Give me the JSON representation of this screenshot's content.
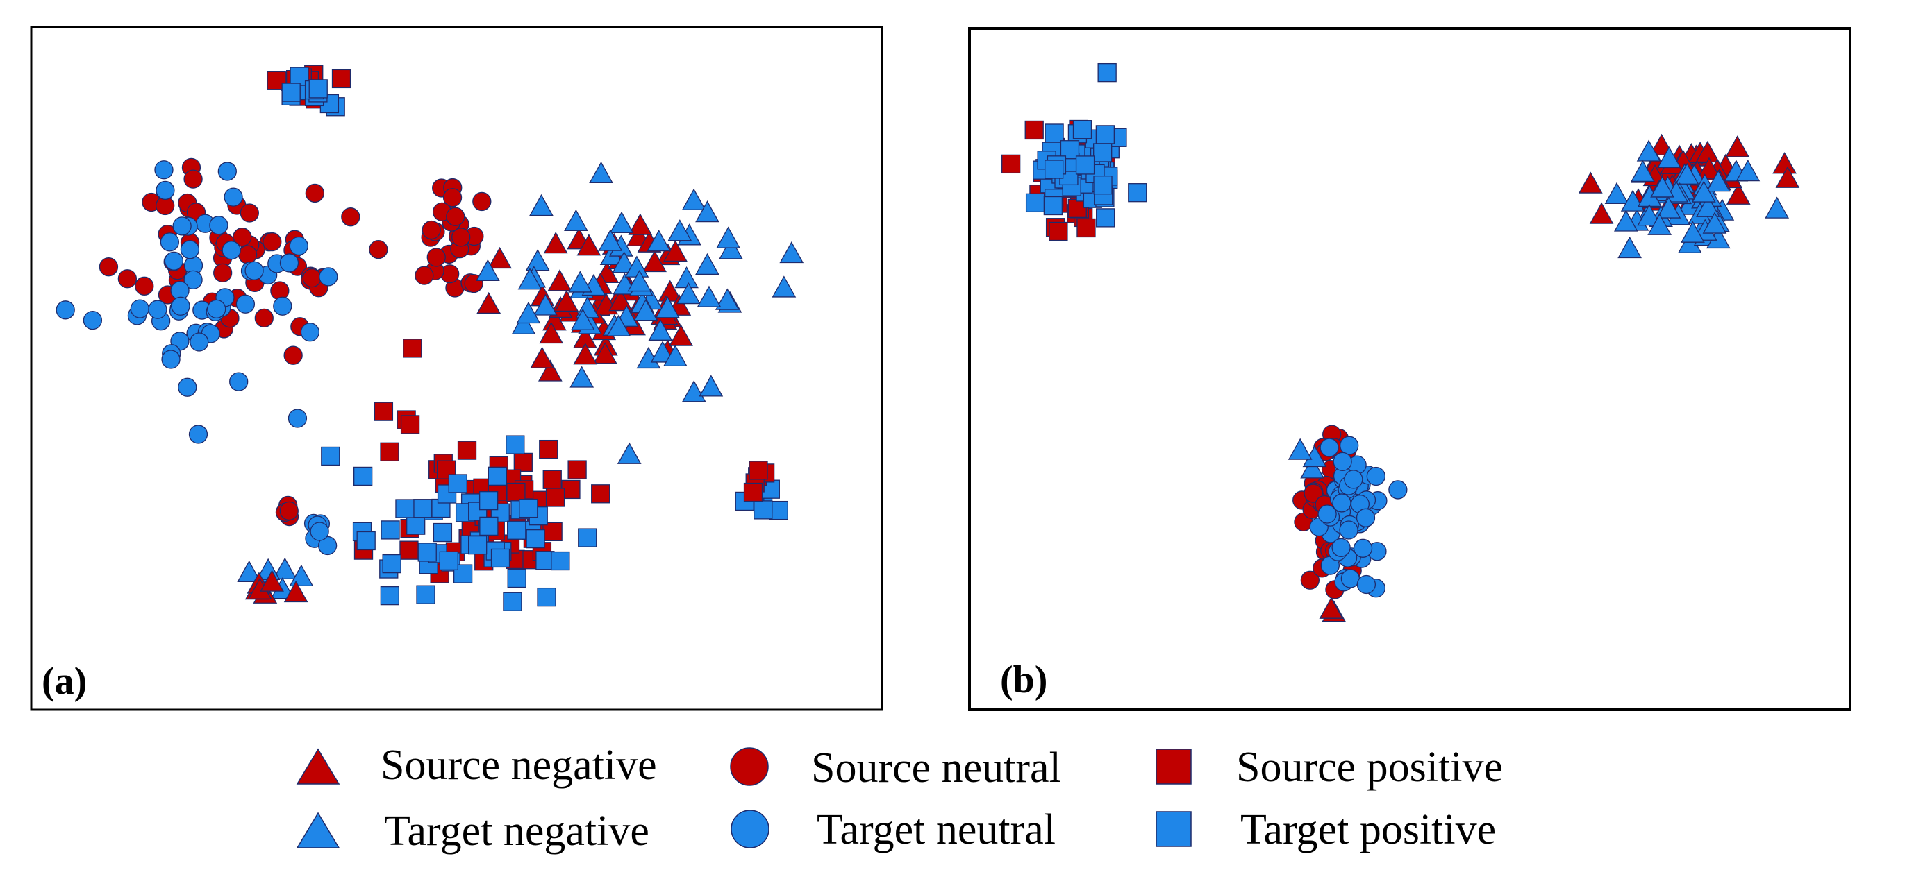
{
  "chart_data": {
    "type": "scatter",
    "colors": {
      "source": "#C00000",
      "target": "#1F86E8",
      "edge": "#1F2B6B"
    },
    "legend": [
      {
        "key": "source_negative",
        "label": "Source negative",
        "shape": "triangle",
        "domain": "source"
      },
      {
        "key": "source_neutral",
        "label": "Source neutral",
        "shape": "circle",
        "domain": "source"
      },
      {
        "key": "source_positive",
        "label": "Source positive",
        "shape": "square",
        "domain": "source"
      },
      {
        "key": "target_negative",
        "label": "Target negative",
        "shape": "triangle",
        "domain": "target"
      },
      {
        "key": "target_neutral",
        "label": "Target neutral",
        "shape": "circle",
        "domain": "target"
      },
      {
        "key": "target_positive",
        "label": "Target positive",
        "shape": "square",
        "domain": "target"
      }
    ],
    "panels": [
      {
        "label": "(a)",
        "xlim": [
          0,
          100
        ],
        "ylim": [
          0,
          100
        ],
        "clusters": [
          {
            "series": "source_neutral",
            "cx": 24,
            "cy": 67,
            "sx": 13,
            "sy": 13,
            "n": 50
          },
          {
            "series": "target_neutral",
            "cx": 21,
            "cy": 62,
            "sx": 12,
            "sy": 14,
            "n": 50
          },
          {
            "series": "source_neutral",
            "cx": 48,
            "cy": 70,
            "sx": 6,
            "sy": 7,
            "n": 25
          },
          {
            "series": "target_neutral",
            "cx": 33,
            "cy": 25,
            "sx": 2,
            "sy": 3,
            "n": 6
          },
          {
            "series": "source_neutral",
            "cx": 30,
            "cy": 28,
            "sx": 1.5,
            "sy": 2,
            "n": 4
          },
          {
            "series": "source_negative",
            "cx": 70,
            "cy": 60,
            "sx": 12,
            "sy": 10,
            "n": 50
          },
          {
            "series": "target_negative",
            "cx": 72,
            "cy": 62,
            "sx": 14,
            "sy": 14,
            "n": 55
          },
          {
            "series": "target_negative",
            "cx": 29,
            "cy": 18,
            "sx": 3,
            "sy": 2,
            "n": 6
          },
          {
            "series": "source_negative",
            "cx": 28,
            "cy": 17,
            "sx": 3,
            "sy": 2,
            "n": 6
          },
          {
            "series": "source_positive",
            "cx": 54,
            "cy": 30,
            "sx": 11,
            "sy": 12,
            "n": 55
          },
          {
            "series": "target_positive",
            "cx": 50,
            "cy": 25,
            "sx": 12,
            "sy": 10,
            "n": 50
          },
          {
            "series": "source_positive",
            "cx": 32,
            "cy": 93,
            "sx": 4,
            "sy": 3,
            "n": 10
          },
          {
            "series": "target_positive",
            "cx": 31,
            "cy": 92,
            "sx": 4,
            "sy": 3,
            "n": 10
          },
          {
            "series": "target_positive",
            "cx": 86,
            "cy": 31,
            "sx": 3,
            "sy": 2,
            "n": 6
          },
          {
            "series": "source_positive",
            "cx": 86,
            "cy": 33,
            "sx": 3,
            "sy": 2,
            "n": 5
          }
        ]
      },
      {
        "label": "(b)",
        "xlim": [
          0,
          100
        ],
        "ylim": [
          0,
          100
        ],
        "clusters": [
          {
            "series": "source_positive",
            "cx": 11,
            "cy": 78,
            "sx": 4,
            "sy": 6,
            "n": 55
          },
          {
            "series": "target_positive",
            "cx": 12,
            "cy": 80,
            "sx": 5,
            "sy": 6,
            "n": 55
          },
          {
            "series": "target_positive",
            "cx": 15,
            "cy": 95,
            "sx": 0.5,
            "sy": 0.5,
            "n": 1
          },
          {
            "series": "source_negative",
            "cx": 81,
            "cy": 79,
            "sx": 7,
            "sy": 5,
            "n": 45
          },
          {
            "series": "target_negative",
            "cx": 83,
            "cy": 76,
            "sx": 7,
            "sy": 6,
            "n": 50
          },
          {
            "series": "source_neutral",
            "cx": 41,
            "cy": 30,
            "sx": 2.5,
            "sy": 9,
            "n": 55
          },
          {
            "series": "target_neutral",
            "cx": 43,
            "cy": 29,
            "sx": 3,
            "sy": 9,
            "n": 55
          },
          {
            "series": "target_negative",
            "cx": 38,
            "cy": 36,
            "sx": 1,
            "sy": 2,
            "n": 3
          },
          {
            "series": "source_negative",
            "cx": 41,
            "cy": 13,
            "sx": 1,
            "sy": 1,
            "n": 2
          }
        ]
      }
    ]
  }
}
